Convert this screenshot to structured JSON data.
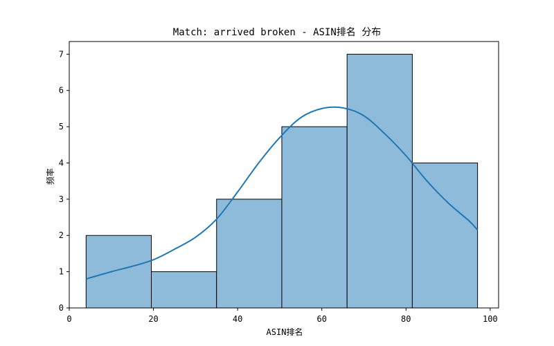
{
  "chart_data": {
    "type": "bar",
    "subtype": "histogram_with_kde",
    "title": "Match: arrived broken - ASIN排名 分布",
    "xlabel": "ASIN排名",
    "ylabel": "频率",
    "xlim": [
      0,
      102
    ],
    "ylim": [
      0,
      7.35
    ],
    "xticks": [
      0,
      20,
      40,
      60,
      80,
      100
    ],
    "yticks": [
      0,
      1,
      2,
      3,
      4,
      5,
      6,
      7
    ],
    "bins": [
      {
        "start": 4,
        "end": 19.5,
        "count": 2
      },
      {
        "start": 19.5,
        "end": 35,
        "count": 1
      },
      {
        "start": 35,
        "end": 50.5,
        "count": 3
      },
      {
        "start": 50.5,
        "end": 66,
        "count": 5
      },
      {
        "start": 66,
        "end": 81.5,
        "count": 7
      },
      {
        "start": 81.5,
        "end": 97,
        "count": 4
      }
    ],
    "kde": {
      "x": [
        4,
        10,
        15,
        20,
        25,
        30,
        35,
        40,
        45,
        50,
        55,
        60,
        65,
        70,
        75,
        80,
        85,
        90,
        95,
        97
      ],
      "y": [
        0.8,
        1.0,
        1.15,
        1.33,
        1.62,
        1.95,
        2.45,
        3.2,
        4.0,
        4.7,
        5.25,
        5.5,
        5.52,
        5.3,
        4.8,
        4.2,
        3.5,
        2.9,
        2.4,
        2.15
      ]
    },
    "bar_color": "#8fbbdb",
    "bar_edge_color": "#000000",
    "kde_color": "#1f77b4",
    "grid": false,
    "legend": "none"
  }
}
